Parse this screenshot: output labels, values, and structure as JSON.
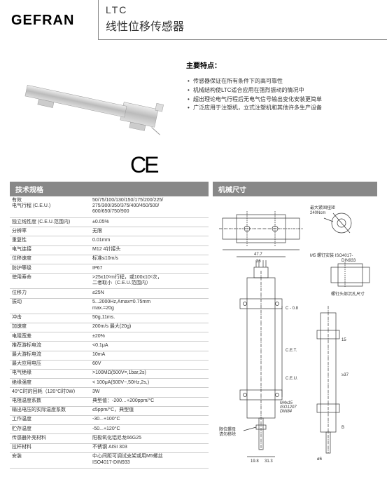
{
  "logo": "GEFRAN",
  "title_code": "LTC",
  "title_name": "线性位移传感器",
  "ce": "CE",
  "features_title": "主要特点：",
  "features": [
    "传感器保证在所有条件下的高可靠性",
    "机械结构使LTC适合应用在强烈振动的情况中",
    "超出理论电气行程后无电气信号输出变化安装更简单",
    "广泛应用于注塑机，立式注塑机和其他许多生产设备"
  ],
  "section_spec": "技术规格",
  "section_mech": "机械尺寸",
  "specs": [
    {
      "l": "有效\n电气行程 (C.E.U.)",
      "v": "50/75/100/130/150/175/200/225/\n275/300/350/375/400/450/500/\n600/650/750/900"
    },
    {
      "l": "独立线性度 (C.E.U.范围内)",
      "v": "±0.05%"
    },
    {
      "l": "分辨率",
      "v": "无限"
    },
    {
      "l": "重复性",
      "v": "0.01mm"
    },
    {
      "l": "电气连接",
      "v": "M12 4针接头"
    },
    {
      "l": "位移速度",
      "v": "标准≤10m/s"
    },
    {
      "l": "防护等级",
      "v": "IP67"
    },
    {
      "l": "使用寿命",
      "v": ">25x10⁶m行程，或100x10⁶次，\n二者取小（C.E.U.范围内）"
    },
    {
      "l": "位移力",
      "v": "≤25N"
    },
    {
      "l": "振动",
      "v": "5...2000Hz,Amax=0.75mm\nmax.=20g"
    },
    {
      "l": "冲击",
      "v": "50g,11ms."
    },
    {
      "l": "加速度",
      "v": "200m/s 最大(20g)"
    },
    {
      "l": "电阻宽差",
      "v": "±20%"
    },
    {
      "l": "推荐游标电流",
      "v": "<0.1μA"
    },
    {
      "l": "最大游标电流",
      "v": "10mA"
    },
    {
      "l": "最大应用电压",
      "v": "60V"
    },
    {
      "l": "电气绝缘",
      "v": ">100MΩ(500V=,1bar,2s)"
    },
    {
      "l": "绝缘强度",
      "v": "< 100μA(500V~,50Hz,2s,)"
    },
    {
      "l": "40°C时的回耗（120°C时0W）",
      "v": "3W"
    },
    {
      "l": "电阻温度系数",
      "v": "典型值：-200…+200ppm/°C"
    },
    {
      "l": "输出电压的实际温度系数",
      "v": "≤5ppm/°C，典型值"
    },
    {
      "l": "工作温度",
      "v": "-30...+100°C"
    },
    {
      "l": "贮存温度",
      "v": "-50...+120°C"
    },
    {
      "l": "传感器外壳材料",
      "v": "阳极氧化铝尼龙66G25"
    },
    {
      "l": "拉杆材料",
      "v": "不锈钢 AISI 303"
    },
    {
      "l": "安装",
      "v": "中心间距可调试支架或用M5螺丝\nISO4017-DIN933"
    }
  ],
  "diagram_labels": {
    "torque": "最大紧固扭矩\n240Ncm",
    "screw": "M5 螺钉安装 ISO4017-\nDIN933",
    "bore": "螺钉头部沉孔尺寸",
    "nut": "限位螺母\n请勿移除",
    "m4": "M4x15\nISO1207\nDIN84"
  }
}
